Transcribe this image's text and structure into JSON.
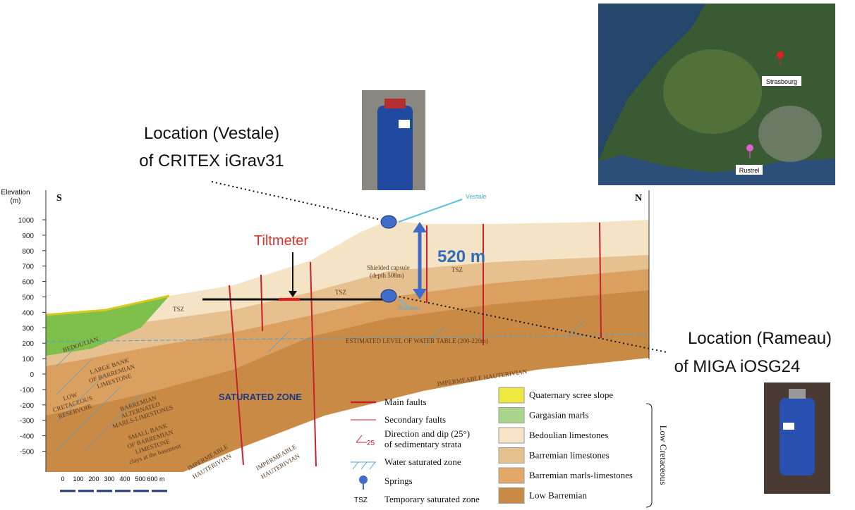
{
  "annotations": {
    "vestale": [
      "Location (Vestale)",
      "of CRITEX iGrav31"
    ],
    "rameau": [
      "Location (Rameau)",
      "of MIGA  iOSG24"
    ],
    "tiltmeter": "Tiltmeter",
    "distance": "520 m"
  },
  "map": {
    "cities": [
      "Strasbourg",
      "Rustrel"
    ]
  },
  "section": {
    "elevation_label": [
      "Elevation",
      "(m)"
    ],
    "elevation_ticks": [
      1000,
      900,
      800,
      700,
      600,
      500,
      400,
      300,
      200,
      100,
      0,
      -100,
      -200,
      -300,
      -400,
      -500
    ],
    "south": "S",
    "north": "N",
    "labels": {
      "vestale": "Vestale",
      "rameau": "Rameau",
      "capsule": [
        "Shielded capsule",
        "(depth 508m)"
      ],
      "tsz": "TSZ",
      "bedoulian": "BEDOULIAN",
      "water_table": "ESTIMATED LEVEL OF WATER TABLE (200-220m)",
      "saturated": "SATURATED ZONE",
      "hauterivian": "IMPERMEABLE HAUTERIVIAN",
      "hauterivian_lines": [
        "IMPERMEABLE",
        "HAUTERIVIAN"
      ],
      "reservoir": [
        "LOW",
        "CRETACEOUS",
        "RESERVOIR"
      ],
      "large_bank": [
        "LARGE BANK",
        "OF BARREMIAN",
        "LIMESTONE"
      ],
      "alternated": [
        "BARREMIAN",
        "ALTERNATED",
        "MARLS-LIMESTONES"
      ],
      "small_bank": [
        "SMALL BANK",
        "OF BARREMIAN",
        "LIMESTONE",
        "clays at the basement"
      ]
    },
    "scale": [
      "0",
      "100",
      "200",
      "300",
      "400",
      "500",
      "600 m"
    ]
  },
  "legend": {
    "symbols": [
      "Main faults",
      "Secondary faults",
      [
        "Direction and dip (25°)",
        "of sedimentary strata"
      ],
      "Water saturated zone",
      "Springs",
      "Temporary saturated zone"
    ],
    "dip_value": "25",
    "tsz_symbol": "TSZ",
    "units": [
      "Quaternary scree slope",
      "Gargasian marls",
      "Bedoulian limestones",
      "Barremian limestones",
      "Barremian marls-limestones",
      "Low Barremian"
    ],
    "group": "Low Cretaceous"
  }
}
